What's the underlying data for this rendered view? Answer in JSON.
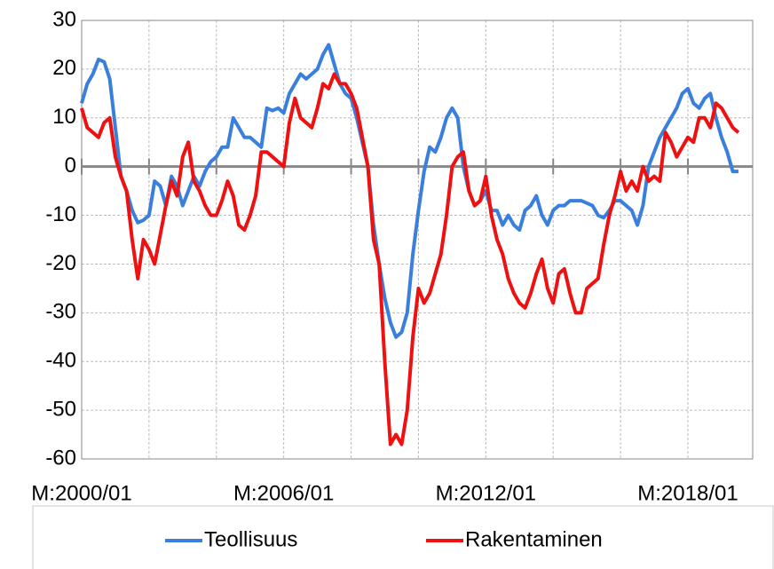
{
  "chart_data": {
    "type": "line",
    "categories": [
      "M:2000/01",
      null,
      null,
      null,
      null,
      null,
      null,
      null,
      null,
      null,
      null,
      null,
      null,
      null,
      null,
      null,
      null,
      null,
      null,
      null,
      null,
      null,
      null,
      null,
      null,
      null,
      null,
      null,
      null,
      null,
      null,
      null,
      null,
      null,
      null,
      null,
      "M:2006/01",
      null,
      null,
      null,
      null,
      null,
      null,
      null,
      null,
      null,
      null,
      null,
      null,
      null,
      null,
      null,
      null,
      null,
      null,
      null,
      null,
      null,
      null,
      null,
      null,
      null,
      null,
      null,
      null,
      null,
      null,
      null,
      null,
      null,
      null,
      null,
      "M:2012/01",
      null,
      null,
      null,
      null,
      null,
      null,
      null,
      null,
      null,
      null,
      null,
      null,
      null,
      null,
      null,
      null,
      null,
      null,
      null,
      null,
      null,
      null,
      null,
      null,
      null,
      null,
      null,
      null,
      null,
      null,
      null,
      null,
      null,
      null,
      null,
      "M:2018/01",
      null,
      null,
      null,
      null,
      null,
      null,
      null,
      null,
      null,
      null,
      null
    ],
    "series": [
      {
        "name": "Teollisuus",
        "color": "#3a7fdc",
        "values": [
          13,
          17,
          19,
          22,
          21.5,
          18,
          8,
          -2,
          -5,
          -9,
          -11.5,
          -11,
          -10,
          -3,
          -4,
          -8,
          -2,
          -4,
          -8,
          -5,
          -2,
          -4,
          -1,
          1,
          2,
          4,
          4,
          10,
          8,
          6,
          6,
          5,
          4,
          12,
          11.5,
          12,
          11,
          15,
          17,
          19,
          18,
          19,
          20,
          23,
          25,
          21,
          17,
          15,
          14,
          10,
          5,
          0,
          -12,
          -20,
          -27,
          -32,
          -35,
          -34,
          -30,
          -18,
          -9,
          -1,
          4,
          3,
          6,
          10,
          12,
          10,
          0,
          -5,
          -8,
          -7,
          -5,
          -9,
          -9,
          -12,
          -10,
          -12,
          -13,
          -9,
          -8,
          -6,
          -10,
          -12,
          -9,
          -8,
          -8,
          -7,
          -7,
          -7,
          -7.5,
          -8,
          -10,
          -10.5,
          -9,
          -7,
          -7,
          -8,
          -9,
          -12,
          -8,
          0,
          3,
          6,
          8,
          10,
          12,
          15,
          16,
          13,
          12,
          14,
          15,
          10,
          6,
          3,
          -1,
          -1,
          null,
          null
        ]
      },
      {
        "name": "Rakentaminen",
        "color": "#ee1111",
        "values": [
          12,
          8,
          7,
          6,
          9,
          10,
          2,
          -2,
          -5,
          -15,
          -23,
          -15,
          -17,
          -20,
          -14,
          -8,
          -3,
          -6,
          2,
          5,
          -3,
          -5,
          -8,
          -10,
          -10,
          -7,
          -3,
          -6,
          -12,
          -13,
          -10,
          -6,
          3,
          3,
          2,
          1,
          0,
          9,
          14,
          10,
          9,
          8,
          12,
          17,
          16,
          19,
          17,
          17,
          15,
          12,
          6,
          0,
          -15,
          -20,
          -40,
          -57,
          -55,
          -57,
          -50,
          -35,
          -25,
          -28,
          -26,
          -22,
          -18,
          -10,
          0,
          2,
          3,
          -5,
          -8,
          -7,
          -2,
          -10,
          -15,
          -18,
          -23,
          -26,
          -28,
          -29,
          -26,
          -22,
          -19,
          -25,
          -28,
          -22,
          -21,
          -26,
          -30,
          -30,
          -25,
          -24,
          -23,
          -16,
          -10,
          -6,
          -1,
          -5,
          -3,
          -5,
          0,
          -3,
          -2,
          -3,
          7,
          5,
          2,
          4,
          6,
          5,
          10,
          10,
          8,
          13,
          12,
          10,
          8,
          7,
          null,
          null
        ]
      }
    ],
    "ylim": [
      -60,
      30
    ],
    "yticks": [
      -60,
      -50,
      -40,
      -30,
      -20,
      -10,
      0,
      10,
      20,
      30
    ],
    "grid": true,
    "legend": "bottom"
  }
}
